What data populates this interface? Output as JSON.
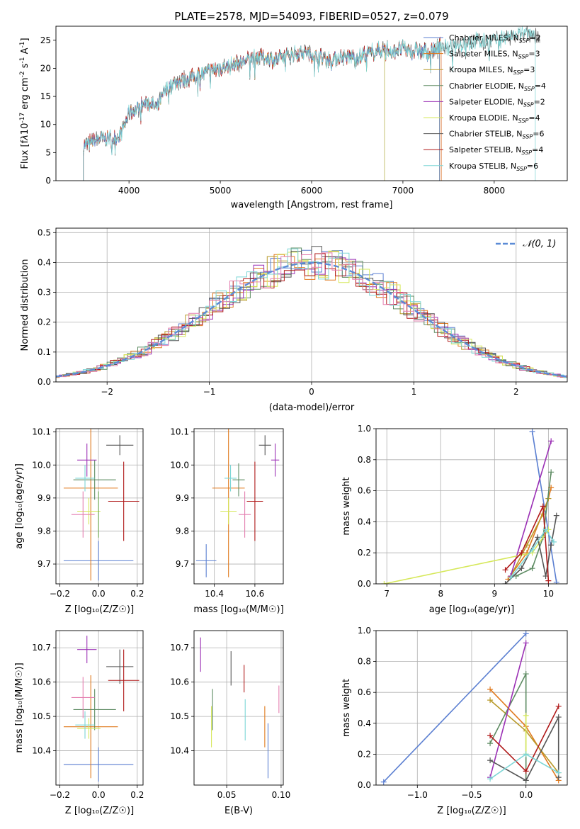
{
  "colors": {
    "Chabrier MILES": "#5b7fd1",
    "Salpeter MILES": "#e07a1e",
    "Kroupa MILES": "#b89a2a",
    "Chabrier ELODIE": "#5e8c63",
    "Salpeter ELODIE": "#9b30b5",
    "Kroupa ELODIE": "#d6e85a",
    "Chabrier STELIB": "#555555",
    "Salpeter STELIB": "#b01a1a",
    "Kroupa STELIB": "#7dd6d6",
    "gaussian": "#5b8bd6",
    "pink": "#e47fb0",
    "green2": "#6aa84f"
  },
  "chart_data": [
    {
      "id": "spectrum",
      "type": "line",
      "title": "PLATE=2578, MJD=54093, FIBERID=0527, z=0.079",
      "xlabel": "wavelength [Angstrom, rest frame]",
      "ylabel_parts": [
        "Flux [f",
        "λ",
        "10",
        "-17",
        " erg cm",
        "-2",
        " s",
        "-1",
        " A",
        "-1",
        "]"
      ],
      "xlim": [
        3200,
        8800
      ],
      "ylim": [
        0,
        27.5
      ],
      "xticks": [
        4000,
        5000,
        6000,
        7000,
        8000
      ],
      "yticks": [
        0,
        5,
        10,
        15,
        20,
        25
      ],
      "legend_placement": "right",
      "legend": [
        {
          "name": "Chabrier MILES",
          "n": "2"
        },
        {
          "name": "Salpeter MILES",
          "n": "3"
        },
        {
          "name": "Kroupa MILES",
          "n": "3"
        },
        {
          "name": "Chabrier ELODIE",
          "n": "4"
        },
        {
          "name": "Salpeter ELODIE",
          "n": "2"
        },
        {
          "name": "Kroupa ELODIE",
          "n": "4"
        },
        {
          "name": "Chabrier STELIB",
          "n": "6"
        },
        {
          "name": "Salpeter STELIB",
          "n": "4"
        },
        {
          "name": "Kroupa STELIB",
          "n": "6"
        }
      ],
      "legend_prefix": "N",
      "legend_sub": "SSP",
      "legend_eq": "=",
      "curve": {
        "x": [
          3500,
          3600,
          3700,
          3800,
          3900,
          4000,
          4100,
          4200,
          4300,
          4400,
          4500,
          4600,
          4700,
          4800,
          4900,
          5000,
          5100,
          5200,
          5300,
          5400,
          5500,
          5600,
          5700,
          5800,
          5900,
          6000,
          6100,
          6200,
          6300,
          6400,
          6500,
          6600,
          6700,
          6800,
          6900,
          7000,
          7100,
          7200,
          7300,
          7400,
          7500,
          7600,
          7700,
          7800,
          7900,
          8000,
          8100,
          8200,
          8300,
          8500
        ],
        "y": [
          6,
          7,
          7.5,
          7.5,
          8,
          12,
          13,
          14,
          13,
          16,
          17.5,
          18,
          18.5,
          19,
          19.5,
          20,
          20.5,
          21,
          21.5,
          22,
          22,
          21.5,
          22,
          22.5,
          23,
          22.5,
          22,
          21.5,
          22,
          22,
          22,
          22.5,
          23,
          23.5,
          23,
          23.5,
          23,
          23,
          23,
          24,
          23.5,
          24,
          24.5,
          25,
          24.5,
          25,
          25.5,
          25.5,
          26,
          26
        ]
      }
    },
    {
      "id": "residuals",
      "type": "histogram",
      "xlabel": "(data-model)/error",
      "ylabel": "Normed distribution",
      "xlim": [
        -2.5,
        2.5
      ],
      "ylim": [
        0,
        0.515
      ],
      "xticks": [
        -2,
        -1,
        0,
        1,
        2
      ],
      "xtick_labels": [
        "−2",
        "−1",
        "0",
        "1",
        "2"
      ],
      "yticks": [
        0,
        0.1,
        0.2,
        0.3,
        0.4,
        0.5
      ],
      "ytick_labels": [
        "0.0",
        "0.1",
        "0.2",
        "0.3",
        "0.4",
        "0.5"
      ],
      "legend_placement": "top-right",
      "gaussian_label": "𝒩(0, 1)",
      "bin_width": 0.1
    },
    {
      "id": "age-vs-Z",
      "type": "errorbar",
      "xlabel": "Z [log₁₀(Z/Z☉)]",
      "ylabel": "age  [log₁₀(age/yr)]",
      "xlim": [
        -0.22,
        0.23
      ],
      "ylim": [
        9.64,
        10.11
      ],
      "xticks": [
        -0.2,
        0.0,
        0.2
      ],
      "xtick_labels": [
        "−0.2",
        "0.0",
        "0.2"
      ],
      "yticks": [
        9.7,
        9.8,
        9.9,
        10.0,
        10.1
      ],
      "ytick_labels": [
        "9.7",
        "9.8",
        "9.9",
        "10.0",
        "10.1"
      ],
      "points": [
        {
          "model": "Chabrier MILES",
          "x": 0.0,
          "xerr": 0.18,
          "y": 9.71,
          "yerr": 0.06
        },
        {
          "model": "Salpeter MILES",
          "x": -0.04,
          "xerr": 0.14,
          "y": 9.93,
          "yerr": 0.28
        },
        {
          "model": "Kroupa MILES",
          "x": -0.04,
          "xerr": 0.0,
          "y": 9.93,
          "yerr": 0.0
        },
        {
          "model": "Chabrier ELODIE",
          "x": -0.02,
          "xerr": 0.11,
          "y": 9.955,
          "yerr": 0.06
        },
        {
          "model": "Salpeter ELODIE",
          "x": -0.06,
          "xerr": 0.05,
          "y": 10.015,
          "yerr": 0.05
        },
        {
          "model": "Kroupa ELODIE",
          "x": -0.05,
          "xerr": 0.06,
          "y": 9.86,
          "yerr": 0.04
        },
        {
          "model": "Chabrier STELIB",
          "x": 0.11,
          "xerr": 0.07,
          "y": 10.06,
          "yerr": 0.03
        },
        {
          "model": "Salpeter STELIB",
          "x": 0.13,
          "xerr": 0.08,
          "y": 9.89,
          "yerr": 0.12
        },
        {
          "model": "Kroupa STELIB",
          "x": -0.07,
          "xerr": 0.05,
          "y": 9.96,
          "yerr": 0.04
        },
        {
          "model": "pink",
          "x": -0.08,
          "xerr": 0.06,
          "y": 9.85,
          "yerr": 0.07
        },
        {
          "model": "green2",
          "x": 0.0,
          "xerr": 0.0,
          "y": 9.85,
          "yerr": 0.07
        }
      ]
    },
    {
      "id": "age-vs-mass",
      "type": "errorbar",
      "xlabel": "mass [log₁₀(M/M☉)]",
      "ylabel": "",
      "xlim": [
        10.3,
        10.74
      ],
      "ylim": [
        9.64,
        10.11
      ],
      "xticks": [
        10.4,
        10.6
      ],
      "xtick_labels": [
        "10.4",
        "10.6"
      ],
      "yticks": [
        9.7,
        9.8,
        9.9,
        10.0,
        10.1
      ],
      "ytick_labels": [
        "9.7",
        "9.8",
        "9.9",
        "10.0",
        "10.1"
      ],
      "points": [
        {
          "model": "Chabrier MILES",
          "x": 10.36,
          "xerr": 0.05,
          "y": 9.71,
          "yerr": 0.05
        },
        {
          "model": "Salpeter MILES",
          "x": 10.47,
          "xerr": 0.08,
          "y": 9.93,
          "yerr": 0.27
        },
        {
          "model": "Chabrier ELODIE",
          "x": 10.52,
          "xerr": 0.03,
          "y": 9.955,
          "yerr": 0.05
        },
        {
          "model": "Salpeter ELODIE",
          "x": 10.7,
          "xerr": 0.02,
          "y": 10.015,
          "yerr": 0.05
        },
        {
          "model": "Kroupa ELODIE",
          "x": 10.47,
          "xerr": 0.04,
          "y": 9.86,
          "yerr": 0.04
        },
        {
          "model": "Chabrier STELIB",
          "x": 10.65,
          "xerr": 0.03,
          "y": 10.06,
          "yerr": 0.03
        },
        {
          "model": "Salpeter STELIB",
          "x": 10.6,
          "xerr": 0.04,
          "y": 9.89,
          "yerr": 0.12
        },
        {
          "model": "Kroupa STELIB",
          "x": 10.48,
          "xerr": 0.03,
          "y": 9.96,
          "yerr": 0.04
        },
        {
          "model": "pink",
          "x": 10.55,
          "xerr": 0.03,
          "y": 9.85,
          "yerr": 0.07
        }
      ]
    },
    {
      "id": "weight-vs-age",
      "type": "line",
      "xlabel": "age  [log₁₀(age/yr)]",
      "ylabel": "mass weight",
      "xlim": [
        6.8,
        10.35
      ],
      "ylim": [
        0,
        1.0
      ],
      "xticks": [
        7,
        8,
        9,
        10
      ],
      "xtick_labels": [
        "7",
        "8",
        "9",
        "10"
      ],
      "yticks": [
        0,
        0.2,
        0.4,
        0.6,
        0.8,
        1.0
      ],
      "ytick_labels": [
        "0.0",
        "0.2",
        "0.4",
        "0.6",
        "0.8",
        "1.0"
      ],
      "series": [
        {
          "model": "Chabrier MILES",
          "x": [
            9.7,
            10.15
          ],
          "y": [
            0.98,
            0.01
          ]
        },
        {
          "model": "Salpeter MILES",
          "x": [
            9.25,
            9.6,
            10.0,
            10.05
          ],
          "y": [
            0.03,
            0.2,
            0.55,
            0.62
          ]
        },
        {
          "model": "Kroupa MILES",
          "x": [
            9.3,
            9.6,
            9.9,
            10.0
          ],
          "y": [
            0.05,
            0.25,
            0.45,
            0.55
          ]
        },
        {
          "model": "Chabrier ELODIE",
          "x": [
            9.4,
            9.7,
            9.9,
            10.05
          ],
          "y": [
            0.05,
            0.1,
            0.3,
            0.72
          ]
        },
        {
          "model": "Salpeter ELODIE",
          "x": [
            9.3,
            10.05
          ],
          "y": [
            0.05,
            0.92
          ]
        },
        {
          "model": "Kroupa ELODIE",
          "x": [
            6.95,
            9.7,
            10.0
          ],
          "y": [
            0.0,
            0.2,
            0.35
          ]
        },
        {
          "model": "Chabrier STELIB",
          "x": [
            9.2,
            9.5,
            9.8,
            9.95,
            10.05,
            10.15
          ],
          "y": [
            0.0,
            0.1,
            0.3,
            0.05,
            0.25,
            0.44
          ]
        },
        {
          "model": "Salpeter STELIB",
          "x": [
            9.2,
            9.5,
            9.9,
            10.0
          ],
          "y": [
            0.09,
            0.2,
            0.5,
            0.02
          ]
        },
        {
          "model": "Kroupa STELIB",
          "x": [
            9.3,
            9.7,
            9.95,
            10.1
          ],
          "y": [
            0.04,
            0.22,
            0.35,
            0.27
          ]
        }
      ]
    },
    {
      "id": "mass-vs-Z",
      "type": "errorbar",
      "xlabel": "Z [log₁₀(Z/Z☉)]",
      "ylabel": "mass [log₁₀(M/M☉)]",
      "xlim": [
        -0.22,
        0.23
      ],
      "ylim": [
        10.3,
        10.75
      ],
      "xticks": [
        -0.2,
        0.0,
        0.2
      ],
      "xtick_labels": [
        "−0.2",
        "0.0",
        "0.2"
      ],
      "yticks": [
        10.4,
        10.5,
        10.6,
        10.7
      ],
      "ytick_labels": [
        "10.4",
        "10.5",
        "10.6",
        "10.7"
      ],
      "points": [
        {
          "model": "Chabrier MILES",
          "x": 0.0,
          "xerr": 0.18,
          "y": 10.36,
          "yerr": 0.05
        },
        {
          "model": "Salpeter MILES",
          "x": -0.04,
          "xerr": 0.14,
          "y": 10.47,
          "yerr": 0.15
        },
        {
          "model": "Chabrier ELODIE",
          "x": -0.02,
          "xerr": 0.11,
          "y": 10.52,
          "yerr": 0.06
        },
        {
          "model": "Salpeter ELODIE",
          "x": -0.06,
          "xerr": 0.05,
          "y": 10.695,
          "yerr": 0.04
        },
        {
          "model": "Kroupa ELODIE",
          "x": -0.05,
          "xerr": 0.06,
          "y": 10.465,
          "yerr": 0.03
        },
        {
          "model": "Chabrier STELIB",
          "x": 0.11,
          "xerr": 0.07,
          "y": 10.645,
          "yerr": 0.05
        },
        {
          "model": "Salpeter STELIB",
          "x": 0.13,
          "xerr": 0.08,
          "y": 10.605,
          "yerr": 0.09
        },
        {
          "model": "Kroupa STELIB",
          "x": -0.07,
          "xerr": 0.05,
          "y": 10.475,
          "yerr": 0.04
        },
        {
          "model": "pink",
          "x": -0.08,
          "xerr": 0.06,
          "y": 10.555,
          "yerr": 0.06
        }
      ]
    },
    {
      "id": "mass-vs-EBV",
      "type": "errorbar",
      "xlabel": "E(B-V)",
      "ylabel": "",
      "xlim": [
        0.02,
        0.102
      ],
      "ylim": [
        10.3,
        10.75
      ],
      "xticks": [
        0.05,
        0.1
      ],
      "xtick_labels": [
        "0.05",
        "0.10"
      ],
      "yticks": [
        10.4,
        10.5,
        10.6,
        10.7
      ],
      "ytick_labels": [
        "10.4",
        "10.5",
        "10.6",
        "10.7"
      ],
      "points": [
        {
          "model": "Salpeter ELODIE",
          "x": 0.026,
          "xerr": 0,
          "y": 10.68,
          "yerr": 0.05
        },
        {
          "model": "Kroupa ELODIE",
          "x": 0.036,
          "xerr": 0,
          "y": 10.47,
          "yerr": 0.06
        },
        {
          "model": "Chabrier ELODIE",
          "x": 0.037,
          "xerr": 0,
          "y": 10.52,
          "yerr": 0.06
        },
        {
          "model": "Chabrier STELIB",
          "x": 0.054,
          "xerr": 0,
          "y": 10.64,
          "yerr": 0.05
        },
        {
          "model": "Salpeter STELIB",
          "x": 0.066,
          "xerr": 0,
          "y": 10.61,
          "yerr": 0.04
        },
        {
          "model": "Kroupa STELIB",
          "x": 0.067,
          "xerr": 0,
          "y": 10.49,
          "yerr": 0.06
        },
        {
          "model": "Salpeter MILES",
          "x": 0.085,
          "xerr": 0,
          "y": 10.47,
          "yerr": 0.06
        },
        {
          "model": "Chabrier MILES",
          "x": 0.088,
          "xerr": 0,
          "y": 10.4,
          "yerr": 0.08
        },
        {
          "model": "pink",
          "x": 0.098,
          "xerr": 0,
          "y": 10.55,
          "yerr": 0.04
        }
      ]
    },
    {
      "id": "weight-vs-Z",
      "type": "line",
      "xlabel": "Z [log₁₀(Z/Z☉)]",
      "ylabel": "mass weight",
      "xlim": [
        -1.38,
        0.38
      ],
      "ylim": [
        0,
        1.0
      ],
      "xticks": [
        -1.0,
        -0.5,
        0.0
      ],
      "xtick_labels": [
        "−1.0",
        "−0.5",
        "0.0"
      ],
      "yticks": [
        0,
        0.2,
        0.4,
        0.6,
        0.8,
        1.0
      ],
      "ytick_labels": [
        "0.0",
        "0.2",
        "0.4",
        "0.6",
        "0.8",
        "1.0"
      ],
      "series": [
        {
          "model": "Chabrier MILES",
          "x": [
            -1.31,
            0.0
          ],
          "y": [
            0.02,
            0.98
          ]
        },
        {
          "model": "Salpeter MILES",
          "x": [
            -0.33,
            0.0,
            0.3
          ],
          "y": [
            0.62,
            0.38,
            0.03
          ]
        },
        {
          "model": "Kroupa MILES",
          "x": [
            -0.33,
            0.0,
            0.3
          ],
          "y": [
            0.55,
            0.35,
            0.08
          ]
        },
        {
          "model": "Chabrier ELODIE",
          "x": [
            -0.33,
            0.0,
            0.0
          ],
          "y": [
            0.27,
            0.72,
            0.03
          ]
        },
        {
          "model": "Salpeter ELODIE",
          "x": [
            -0.33,
            0.0
          ],
          "y": [
            0.05,
            0.92
          ]
        },
        {
          "model": "Kroupa ELODIE",
          "x": [
            0.0,
            0.0
          ],
          "y": [
            0.2,
            0.45
          ]
        },
        {
          "model": "Chabrier STELIB",
          "x": [
            -0.33,
            0.0,
            0.3,
            0.3
          ],
          "y": [
            0.16,
            0.03,
            0.44,
            0.05
          ]
        },
        {
          "model": "Salpeter STELIB",
          "x": [
            -0.33,
            0.0,
            0.3
          ],
          "y": [
            0.32,
            0.09,
            0.51
          ]
        },
        {
          "model": "Kroupa STELIB",
          "x": [
            -0.33,
            0.0,
            0.3
          ],
          "y": [
            0.04,
            0.2,
            0.08
          ]
        }
      ]
    }
  ]
}
